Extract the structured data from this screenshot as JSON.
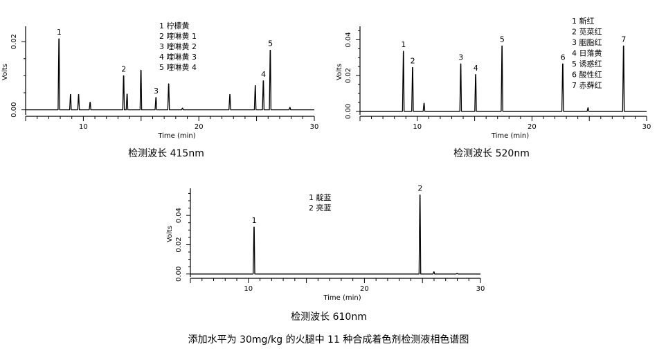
{
  "figure_caption": "添加水平为 30mg/kg 的火腿中 11 种合成着色剂检测液相色谱图",
  "chart_data": [
    {
      "type": "line",
      "caption": "检测波长 415nm",
      "xlabel": "Time (min)",
      "ylabel": "Volts",
      "xlim": [
        5,
        30
      ],
      "ylim": [
        -0.0015,
        0.0245
      ],
      "x_ticks": [
        10,
        20,
        30
      ],
      "y_ticks": [
        0.0,
        0.02
      ],
      "y_tick_labels": [
        "0.00",
        "0.02"
      ],
      "peaks": [
        {
          "time": 7.9,
          "height": 0.0208,
          "label": "1"
        },
        {
          "time": 8.9,
          "height": 0.0045,
          "label": ""
        },
        {
          "time": 9.6,
          "height": 0.0045,
          "label": ""
        },
        {
          "time": 10.6,
          "height": 0.0022,
          "label": ""
        },
        {
          "time": 13.5,
          "height": 0.01,
          "label": "2"
        },
        {
          "time": 13.8,
          "height": 0.0046,
          "label": ""
        },
        {
          "time": 15.0,
          "height": 0.0116,
          "label": ""
        },
        {
          "time": 16.3,
          "height": 0.0036,
          "label": "3"
        },
        {
          "time": 17.4,
          "height": 0.0076,
          "label": ""
        },
        {
          "time": 18.6,
          "height": 0.0005,
          "label": ""
        },
        {
          "time": 22.7,
          "height": 0.0045,
          "label": ""
        },
        {
          "time": 24.9,
          "height": 0.0071,
          "label": ""
        },
        {
          "time": 25.6,
          "height": 0.0085,
          "label": "4"
        },
        {
          "time": 26.2,
          "height": 0.0175,
          "label": "5"
        },
        {
          "time": 27.9,
          "height": 0.0007,
          "label": ""
        }
      ],
      "legend": [
        "1 柠檬黄",
        "2 喹啉黄 1",
        "3 喹啉黄 2",
        "4 喹啉黄 3",
        "5 喹啉黄 4"
      ]
    },
    {
      "type": "line",
      "caption": "检测波长 520nm",
      "xlabel": "Time (min)",
      "ylabel": "Volts",
      "xlim": [
        5,
        30
      ],
      "ylim": [
        -0.002,
        0.0475
      ],
      "x_ticks": [
        10,
        20,
        30
      ],
      "y_ticks": [
        0.0,
        0.02,
        0.04
      ],
      "y_tick_labels": [
        "0.00",
        "0.02",
        "0.04"
      ],
      "peaks": [
        {
          "time": 8.8,
          "height": 0.0335,
          "label": "1"
        },
        {
          "time": 9.6,
          "height": 0.0245,
          "label": "2"
        },
        {
          "time": 10.6,
          "height": 0.0045,
          "label": ""
        },
        {
          "time": 13.8,
          "height": 0.0265,
          "label": "3"
        },
        {
          "time": 15.1,
          "height": 0.0205,
          "label": "4"
        },
        {
          "time": 17.4,
          "height": 0.0365,
          "label": "5"
        },
        {
          "time": 22.7,
          "height": 0.0265,
          "label": "6"
        },
        {
          "time": 24.9,
          "height": 0.002,
          "label": ""
        },
        {
          "time": 28.0,
          "height": 0.0365,
          "label": "7"
        }
      ],
      "legend": [
        "1 新红",
        "2 苋菜红",
        "3 胭脂红",
        "4 日落黄",
        "5 诱惑红",
        "6 酸性红",
        "7 赤藓红"
      ]
    },
    {
      "type": "line",
      "caption": "检测波长 610nm",
      "xlabel": "Time (min)",
      "ylabel": "Volts",
      "xlim": [
        5,
        30
      ],
      "ylim": [
        -0.002,
        0.0585
      ],
      "x_ticks": [
        10,
        20,
        30
      ],
      "y_ticks": [
        0.0,
        0.02,
        0.04
      ],
      "y_tick_labels": [
        "0.00",
        "0.02",
        "0.04"
      ],
      "peaks": [
        {
          "time": 10.5,
          "height": 0.032,
          "label": "1"
        },
        {
          "time": 24.8,
          "height": 0.054,
          "label": "2"
        },
        {
          "time": 26.0,
          "height": 0.0015,
          "label": ""
        },
        {
          "time": 28.0,
          "height": 0.0005,
          "label": ""
        }
      ],
      "legend": [
        "1 靛蓝",
        "2 亮蓝"
      ]
    }
  ]
}
